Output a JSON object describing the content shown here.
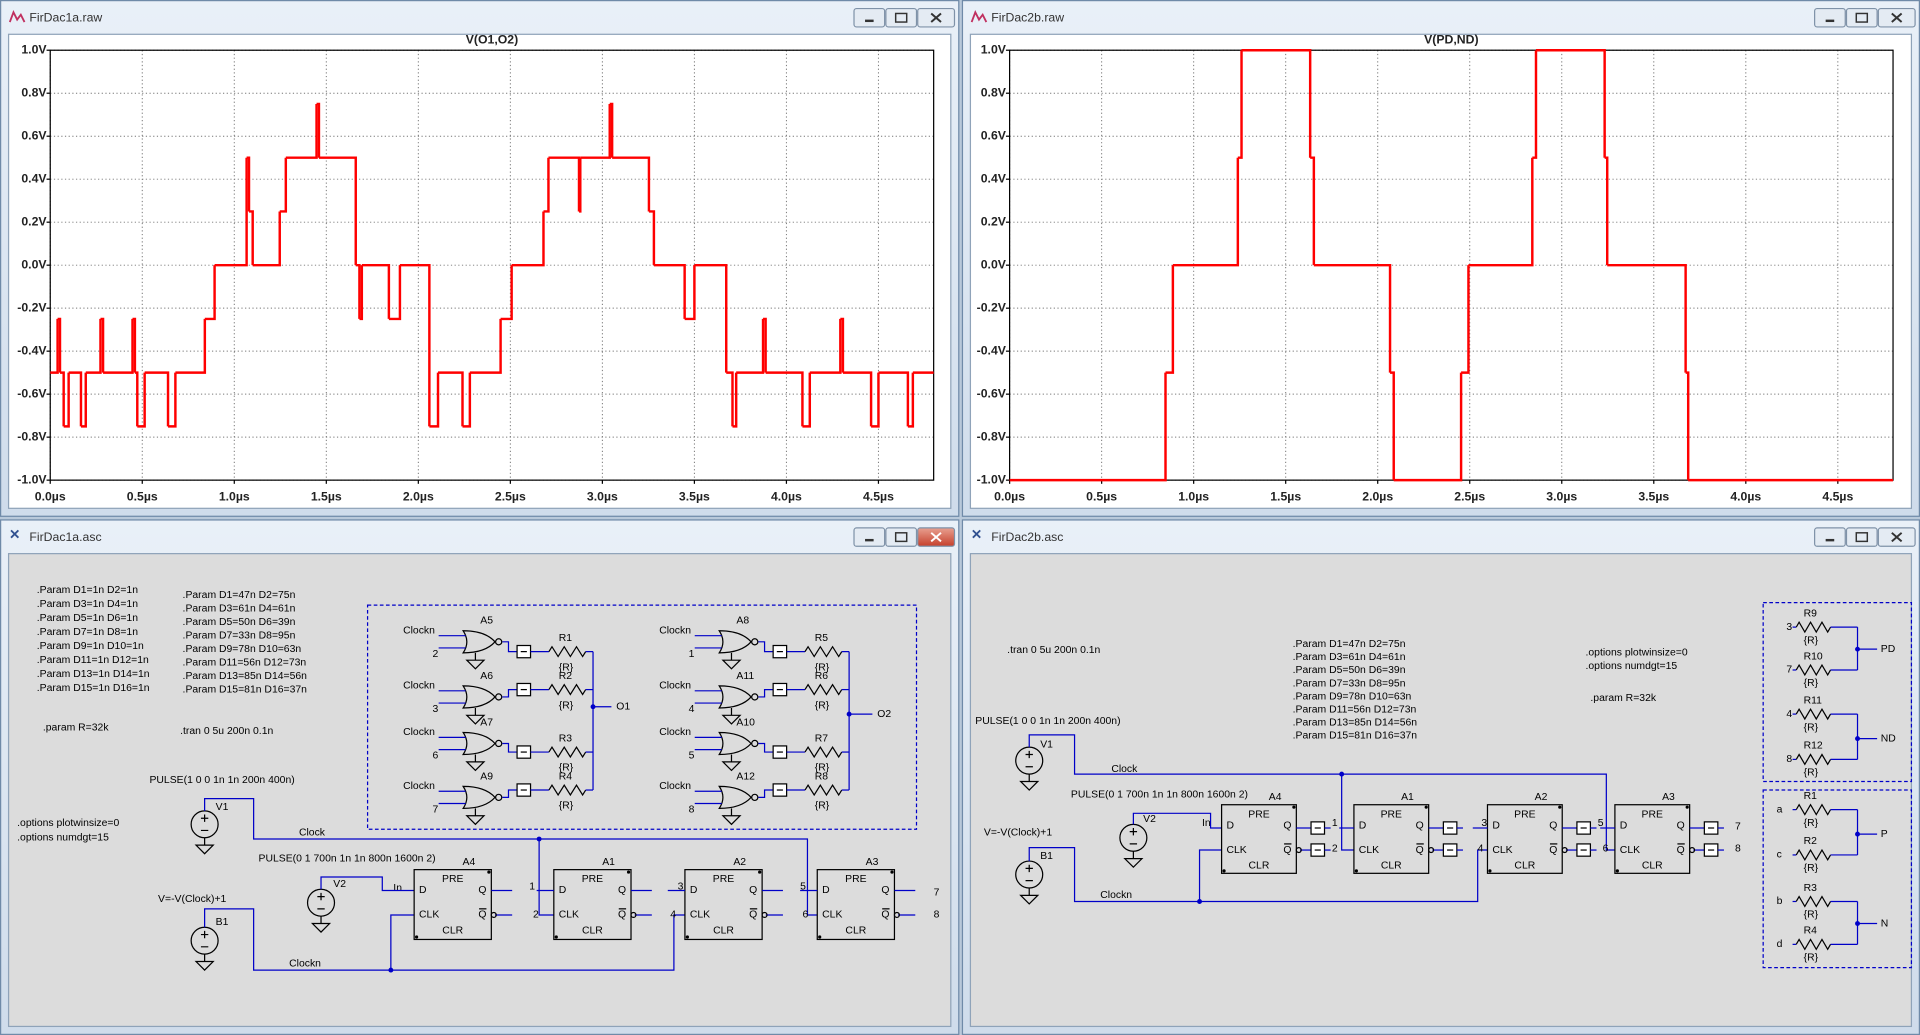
{
  "windows": [
    {
      "title": "FirDac1a.raw"
    },
    {
      "title": "FirDac2b.raw"
    },
    {
      "title": "FirDac1a.asc"
    },
    {
      "title": "FirDac2b.asc"
    }
  ],
  "chart_data": [
    {
      "type": "line",
      "title": "V(O1,O2)",
      "color": "#ff0000",
      "grid": true,
      "x": [
        0,
        0.04,
        0.053,
        0.073,
        0.1,
        0.167,
        0.193,
        0.273,
        0.287,
        0.447,
        0.46,
        0.473,
        0.513,
        0.64,
        0.68,
        0.84,
        0.893,
        1.067,
        1.08,
        1.1,
        1.247,
        1.28,
        1.447,
        1.46,
        1.66,
        1.68,
        1.693,
        1.84,
        1.9,
        2.06,
        2.107,
        2.24,
        2.28,
        2.447,
        2.507,
        2.68,
        2.707,
        2.873,
        2.88,
        3.04,
        3.053,
        3.253,
        3.28,
        3.447,
        3.5,
        3.673,
        3.707,
        3.727,
        3.873,
        3.887,
        4.087,
        4.127,
        4.293,
        4.307,
        4.46,
        4.5,
        4.66,
        4.687
      ],
      "values": [
        -0.5,
        -0.25,
        -0.5,
        -0.75,
        -0.5,
        -0.75,
        -0.5,
        -0.25,
        -0.5,
        -0.25,
        -0.5,
        -0.75,
        -0.5,
        -0.75,
        -0.5,
        -0.25,
        0,
        0.5,
        0.25,
        0,
        0.25,
        0.5,
        0.75,
        0.5,
        0,
        -0.25,
        0,
        -0.25,
        0,
        -0.75,
        -0.5,
        -0.75,
        -0.5,
        -0.25,
        0,
        0.25,
        0.5,
        0.25,
        0.5,
        0.75,
        0.5,
        0.25,
        0,
        -0.25,
        0,
        -0.5,
        -0.75,
        -0.5,
        -0.25,
        -0.5,
        -0.75,
        -0.5,
        -0.25,
        -0.5,
        -0.75,
        -0.5,
        -0.75,
        -0.5
      ],
      "xlim": [
        0,
        4.8
      ],
      "ylim": [
        -1,
        1
      ],
      "xticks": [
        {
          "value": 0,
          "label": "0.0µs"
        },
        {
          "value": 0.5,
          "label": "0.5µs"
        },
        {
          "value": 1,
          "label": "1.0µs"
        },
        {
          "value": 1.5,
          "label": "1.5µs"
        },
        {
          "value": 2,
          "label": "2.0µs"
        },
        {
          "value": 2.5,
          "label": "2.5µs"
        },
        {
          "value": 3,
          "label": "3.0µs"
        },
        {
          "value": 3.5,
          "label": "3.5µs"
        },
        {
          "value": 4,
          "label": "4.0µs"
        },
        {
          "value": 4.5,
          "label": "4.5µs"
        }
      ],
      "yticks": [
        {
          "value": 1,
          "label": "1.0V"
        },
        {
          "value": 0.8,
          "label": "0.8V"
        },
        {
          "value": 0.6,
          "label": "0.6V"
        },
        {
          "value": 0.4,
          "label": "0.4V"
        },
        {
          "value": 0.2,
          "label": "0.2V"
        },
        {
          "value": 0,
          "label": "0.0V"
        },
        {
          "value": -0.2,
          "label": "-0.2V"
        },
        {
          "value": -0.4,
          "label": "-0.4V"
        },
        {
          "value": -0.6,
          "label": "-0.6V"
        },
        {
          "value": -0.8,
          "label": "-0.8V"
        },
        {
          "value": -1,
          "label": "-1.0V"
        }
      ]
    },
    {
      "type": "line",
      "title": "V(PD,ND)",
      "color": "#ff0000",
      "grid": true,
      "x": [
        0,
        0.847,
        0.887,
        1.24,
        1.26,
        1.633,
        1.653,
        2.067,
        2.087,
        2.453,
        2.493,
        2.84,
        2.86,
        3.233,
        3.247,
        3.673,
        3.687
      ],
      "values": [
        -1,
        -0.5,
        0,
        0.5,
        1,
        0.5,
        0,
        -0.5,
        -1,
        -0.5,
        0,
        0.5,
        1,
        0.5,
        0,
        -0.5,
        -1
      ],
      "xlim": [
        0,
        4.8
      ],
      "ylim": [
        -1,
        1
      ],
      "xticks": [
        {
          "value": 0,
          "label": "0.0µs"
        },
        {
          "value": 0.5,
          "label": "0.5µs"
        },
        {
          "value": 1,
          "label": "1.0µs"
        },
        {
          "value": 1.5,
          "label": "1.5µs"
        },
        {
          "value": 2,
          "label": "2.0µs"
        },
        {
          "value": 2.5,
          "label": "2.5µs"
        },
        {
          "value": 3,
          "label": "3.0µs"
        },
        {
          "value": 3.5,
          "label": "3.5µs"
        },
        {
          "value": 4,
          "label": "4.0µs"
        },
        {
          "value": 4.5,
          "label": "4.5µs"
        }
      ],
      "yticks": [
        {
          "value": 1,
          "label": "1.0V"
        },
        {
          "value": 0.8,
          "label": "0.8V"
        },
        {
          "value": 0.6,
          "label": "0.6V"
        },
        {
          "value": 0.4,
          "label": "0.4V"
        },
        {
          "value": 0.2,
          "label": "0.2V"
        },
        {
          "value": 0,
          "label": "0.0V"
        },
        {
          "value": -0.2,
          "label": "-0.2V"
        },
        {
          "value": -0.4,
          "label": "-0.4V"
        },
        {
          "value": -0.6,
          "label": "-0.6V"
        },
        {
          "value": -0.8,
          "label": "-0.8V"
        },
        {
          "value": -1,
          "label": "-1.0V"
        }
      ]
    }
  ],
  "schematic_1a": {
    "params_blue": [
      ".Param D1=1n D2=1n",
      ".Param D3=1n D4=1n",
      ".Param D5=1n D6=1n",
      ".Param D7=1n D8=1n",
      ".Param D9=1n D10=1n",
      ".Param D11=1n D12=1n",
      ".Param D13=1n D14=1n",
      ".Param D15=1n D16=1n"
    ],
    "params": [
      ".Param D1=47n D2=75n",
      ".Param D3=61n D4=61n",
      ".Param D5=50n D6=39n",
      ".Param D7=33n D8=95n",
      ".Param D9=78n D10=63n",
      ".Param D11=56n D12=73n",
      ".Param D13=85n D14=56n",
      ".Param D15=81n D16=37n"
    ],
    "param_r": ".param R=32k",
    "tran": ".tran 0 5u 200n 0.1n",
    "options": [
      ".options plotwinsize=0",
      ".options numdgt=15"
    ],
    "v1": {
      "name": "V1",
      "value": "PULSE(1 0 0 1n 1n 200n 400n)"
    },
    "v2": {
      "name": "V2",
      "value": "PULSE(0 1 700n 1n 1n 800n 1600n 2)"
    },
    "b1": {
      "name": "B1",
      "value": "V=-V(Clock)+1"
    },
    "nets": [
      "Clock",
      "Clockn",
      "In",
      "O1",
      "O2"
    ],
    "gates": [
      {
        "name": "A5",
        "input": "2"
      },
      {
        "name": "A6",
        "input": "3"
      },
      {
        "name": "A7",
        "input": "6"
      },
      {
        "name": "A9",
        "input": "7"
      },
      {
        "name": "A8",
        "input": "1"
      },
      {
        "name": "A11",
        "input": "4"
      },
      {
        "name": "A10",
        "input": "5"
      },
      {
        "name": "A12",
        "input": "8"
      }
    ],
    "resistors": [
      {
        "name": "R1",
        "value": "{R}"
      },
      {
        "name": "R2",
        "value": "{R}"
      },
      {
        "name": "R3",
        "value": "{R}"
      },
      {
        "name": "R4",
        "value": "{R}"
      },
      {
        "name": "R5",
        "value": "{R}"
      },
      {
        "name": "R6",
        "value": "{R}"
      },
      {
        "name": "R7",
        "value": "{R}"
      },
      {
        "name": "R8",
        "value": "{R}"
      }
    ],
    "flipflops": [
      "A4",
      "A1",
      "A2",
      "A3"
    ],
    "ff_pins": [
      "PRE",
      "D",
      "Q",
      "CLK",
      "Q",
      "CLR"
    ],
    "nodes": [
      "1",
      "2",
      "3",
      "4",
      "5",
      "6",
      "7",
      "8"
    ]
  },
  "schematic_2b": {
    "tran": ".tran 0 5u 200n 0.1n",
    "params": [
      ".Param D1=47n D2=75n",
      ".Param D3=61n D4=61n",
      ".Param D5=50n D6=39n",
      ".Param D7=33n D8=95n",
      ".Param D9=78n D10=63n",
      ".Param D11=56n D12=73n",
      ".Param D13=85n D14=56n",
      ".Param D15=81n D16=37n"
    ],
    "options": [
      ".options plotwinsize=0",
      ".options numdgt=15"
    ],
    "param_r": ".param R=32k",
    "v1": {
      "name": "V1",
      "value": "PULSE(1 0 0 1n 1n 200n 400n)"
    },
    "v2": {
      "name": "V2",
      "value": "PULSE(0 1 700n 1n 1n 800n 1600n 2)"
    },
    "b1": {
      "name": "B1",
      "value": "V=-V(Clock)+1"
    },
    "nets": [
      "Clock",
      "Clockn",
      "In",
      "PD",
      "ND",
      "P",
      "N"
    ],
    "flipflops": [
      "A4",
      "A1",
      "A2",
      "A3"
    ],
    "ff_pins": [
      "PRE",
      "D",
      "Q",
      "CLK",
      "Q",
      "CLR"
    ],
    "nodes": [
      "1",
      "2",
      "3",
      "4",
      "5",
      "6",
      "7",
      "8"
    ],
    "resistors": [
      {
        "name": "R9",
        "value": "{R}",
        "node": "3"
      },
      {
        "name": "R10",
        "value": "{R}",
        "node": "7"
      },
      {
        "name": "R11",
        "value": "{R}",
        "node": "4"
      },
      {
        "name": "R12",
        "value": "{R}",
        "node": "8"
      },
      {
        "name": "R1",
        "value": "{R}",
        "node": "a"
      },
      {
        "name": "R2",
        "value": "{R}",
        "node": "c"
      },
      {
        "name": "R3",
        "value": "{R}",
        "node": "b"
      },
      {
        "name": "R4",
        "value": "{R}",
        "node": "d"
      }
    ]
  }
}
